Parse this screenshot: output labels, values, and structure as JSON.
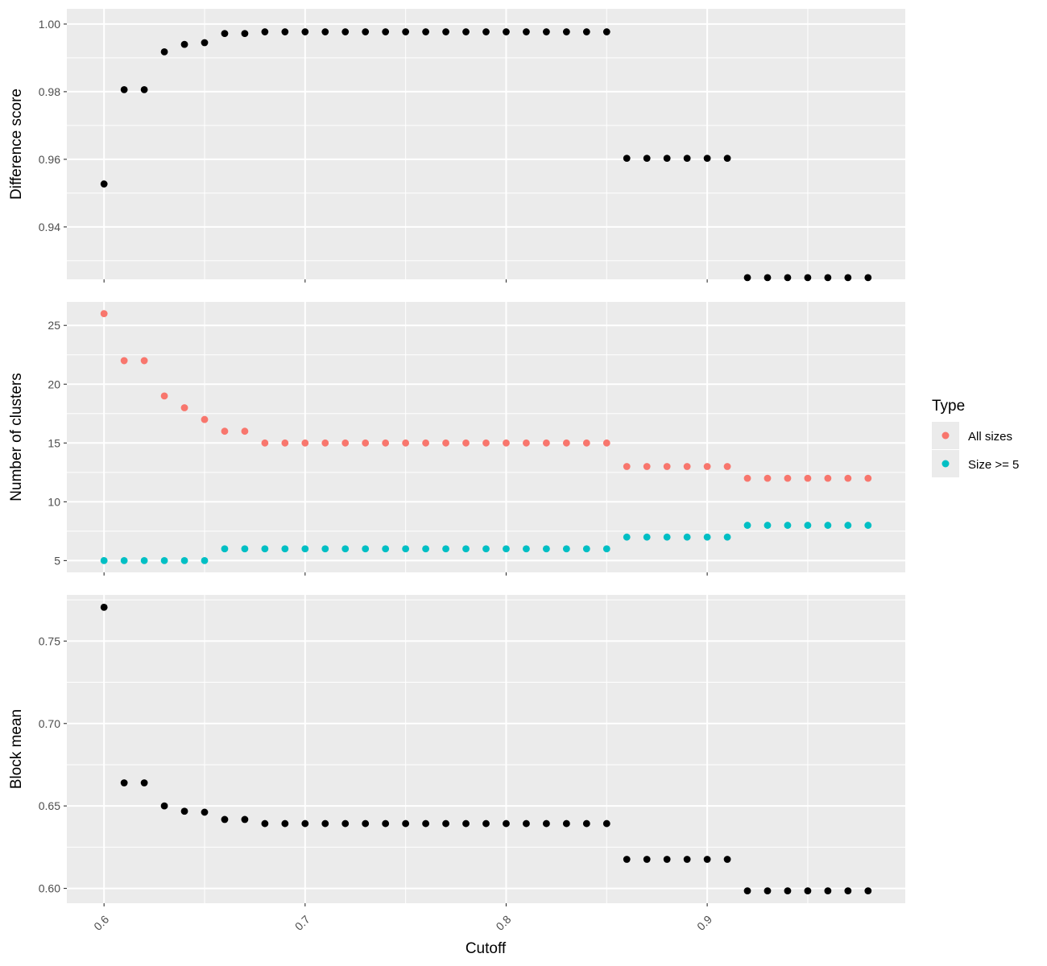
{
  "chart_data": {
    "type": "scatter",
    "xlabel": "Cutoff",
    "x_ticks": [
      "0.6",
      "0.7",
      "0.8",
      "0.9"
    ],
    "x": [
      0.6,
      0.61,
      0.62,
      0.63,
      0.64,
      0.65,
      0.66,
      0.67,
      0.68,
      0.69,
      0.7,
      0.71,
      0.72,
      0.73,
      0.74,
      0.75,
      0.76,
      0.77,
      0.78,
      0.79,
      0.8,
      0.81,
      0.82,
      0.83,
      0.84,
      0.85,
      0.86,
      0.87,
      0.88,
      0.89,
      0.9,
      0.91,
      0.92,
      0.93,
      0.94,
      0.95,
      0.96,
      0.97,
      0.98
    ],
    "grid": true,
    "legend": {
      "title": "Type",
      "position": "right",
      "entries": [
        {
          "label": "All sizes",
          "color": "#F8766D"
        },
        {
          "label": "Size >= 5",
          "color": "#00BFC4"
        }
      ]
    },
    "panels": [
      {
        "ylabel": "Difference score",
        "ylim": [
          0.9245,
          1.0045
        ],
        "y_ticks": [
          "0.94",
          "0.96",
          "0.98",
          "1.00"
        ],
        "series": [
          {
            "color": "#000000",
            "values": [
              0.9527,
              0.9806,
              0.9806,
              0.9918,
              0.994,
              0.9945,
              0.9972,
              0.9972,
              0.9977,
              0.9977,
              0.9977,
              0.9977,
              0.9977,
              0.9977,
              0.9977,
              0.9977,
              0.9977,
              0.9977,
              0.9977,
              0.9977,
              0.9977,
              0.9977,
              0.9977,
              0.9977,
              0.9977,
              0.9977,
              0.9603,
              0.9603,
              0.9603,
              0.9603,
              0.9603,
              0.9603,
              0.925,
              0.925,
              0.925,
              0.925,
              0.925,
              0.925,
              0.925
            ]
          }
        ]
      },
      {
        "ylabel": "Number of clusters",
        "ylim": [
          4.0,
          27.0
        ],
        "y_ticks": [
          "5",
          "10",
          "15",
          "20",
          "25"
        ],
        "series": [
          {
            "name": "All sizes",
            "color": "#F8766D",
            "values": [
              26,
              22,
              22,
              19,
              18,
              17,
              16,
              16,
              15,
              15,
              15,
              15,
              15,
              15,
              15,
              15,
              15,
              15,
              15,
              15,
              15,
              15,
              15,
              15,
              15,
              15,
              13,
              13,
              13,
              13,
              13,
              13,
              12,
              12,
              12,
              12,
              12,
              12,
              12
            ]
          },
          {
            "name": "Size >= 5",
            "color": "#00BFC4",
            "values": [
              5,
              5,
              5,
              5,
              5,
              5,
              6,
              6,
              6,
              6,
              6,
              6,
              6,
              6,
              6,
              6,
              6,
              6,
              6,
              6,
              6,
              6,
              6,
              6,
              6,
              6,
              7,
              7,
              7,
              7,
              7,
              7,
              8,
              8,
              8,
              8,
              8,
              8,
              8
            ]
          }
        ]
      },
      {
        "ylabel": "Block mean",
        "ylim": [
          0.591,
          0.778
        ],
        "y_ticks": [
          "0.60",
          "0.65",
          "0.70",
          "0.75"
        ],
        "series": [
          {
            "color": "#000000",
            "values": [
              0.7705,
              0.664,
              0.664,
              0.65,
              0.6468,
              0.6462,
              0.6418,
              0.6418,
              0.6393,
              0.6393,
              0.6393,
              0.6393,
              0.6393,
              0.6393,
              0.6393,
              0.6393,
              0.6393,
              0.6393,
              0.6393,
              0.6393,
              0.6393,
              0.6393,
              0.6393,
              0.6393,
              0.6393,
              0.6393,
              0.6176,
              0.6176,
              0.6176,
              0.6176,
              0.6176,
              0.6176,
              0.5985,
              0.5985,
              0.5985,
              0.5985,
              0.5985,
              0.5985,
              0.5985
            ]
          }
        ]
      }
    ]
  }
}
